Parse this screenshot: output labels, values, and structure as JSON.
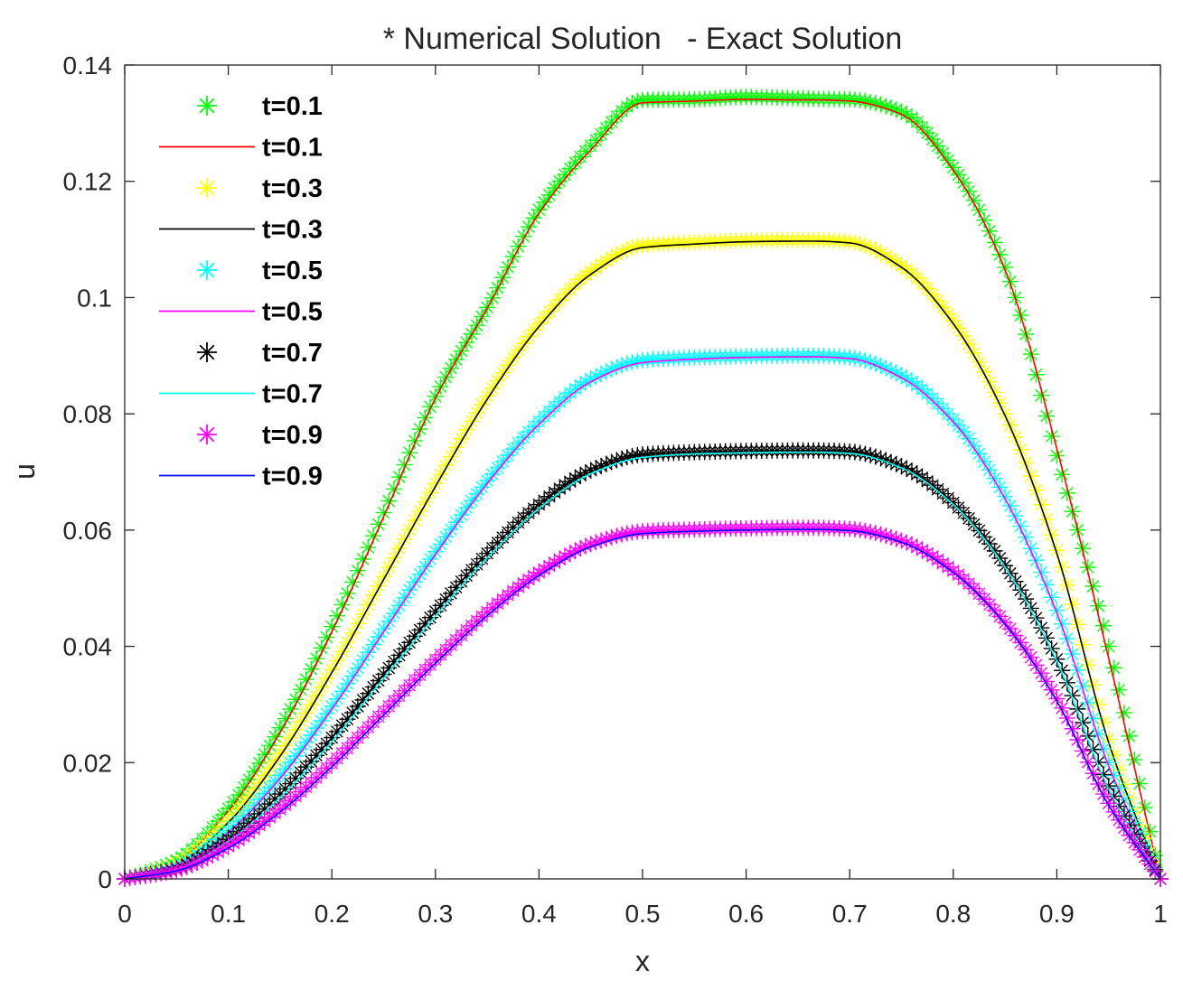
{
  "chart_data": {
    "type": "line",
    "title": "* Numerical Solution   - Exact Solution",
    "xlabel": "x",
    "ylabel": "u",
    "xlim": [
      0,
      1
    ],
    "ylim": [
      0,
      0.14
    ],
    "grid": false,
    "legend_placement": "top-left",
    "x_ticks": [
      "0",
      "0.1",
      "0.2",
      "0.3",
      "0.4",
      "0.5",
      "0.6",
      "0.7",
      "0.8",
      "0.9",
      "1"
    ],
    "y_ticks": [
      "0",
      "0.02",
      "0.04",
      "0.06",
      "0.08",
      "0.1",
      "0.12",
      "0.14"
    ],
    "x": [
      0,
      0.05,
      0.1,
      0.15,
      0.2,
      0.25,
      0.3,
      0.35,
      0.4,
      0.45,
      0.5,
      0.55,
      0.6,
      0.65,
      0.6667,
      0.7,
      0.75,
      0.8,
      0.85,
      0.9,
      0.95,
      1
    ],
    "series": [
      {
        "name": "t=0.1",
        "style": "marker",
        "color": "#00ff00",
        "values": [
          0,
          0.0032,
          0.0121,
          0.026,
          0.0434,
          0.063,
          0.083,
          0.0983,
          0.1151,
          0.1261,
          0.134,
          0.1341,
          0.1345,
          0.1343,
          0.1342,
          0.1341,
          0.132,
          0.1224,
          0.1052,
          0.0728,
          0.04,
          0
        ]
      },
      {
        "name": "t=0.1",
        "style": "line",
        "color": "#ff0000",
        "values": [
          0,
          0.003,
          0.0117,
          0.0252,
          0.0425,
          0.0623,
          0.0827,
          0.0982,
          0.1145,
          0.1254,
          0.1335,
          0.1338,
          0.1341,
          0.134,
          0.134,
          0.1338,
          0.1315,
          0.1219,
          0.1048,
          0.074,
          0.038,
          0
        ]
      },
      {
        "name": "t=0.3",
        "style": "marker",
        "color": "#ffff00",
        "values": [
          0,
          0.0027,
          0.01,
          0.0216,
          0.036,
          0.052,
          0.068,
          0.083,
          0.0955,
          0.1045,
          0.109,
          0.1095,
          0.1098,
          0.1099,
          0.1099,
          0.1096,
          0.1055,
          0.096,
          0.08,
          0.0565,
          0.024,
          0
        ]
      },
      {
        "name": "t=0.3",
        "style": "line",
        "color": "#000000",
        "values": [
          0,
          0.0025,
          0.0097,
          0.0211,
          0.0355,
          0.0515,
          0.0675,
          0.0825,
          0.095,
          0.104,
          0.1086,
          0.1092,
          0.1096,
          0.1097,
          0.1097,
          0.1094,
          0.1052,
          0.0955,
          0.0797,
          0.056,
          0.0235,
          0
        ]
      },
      {
        "name": "t=0.5",
        "style": "marker",
        "color": "#00ffff",
        "values": [
          0,
          0.0022,
          0.0083,
          0.0178,
          0.0297,
          0.043,
          0.0563,
          0.0685,
          0.0787,
          0.086,
          0.0892,
          0.0897,
          0.0899,
          0.09,
          0.09,
          0.0897,
          0.0866,
          0.079,
          0.0658,
          0.0462,
          0.02,
          0
        ]
      },
      {
        "name": "t=0.5",
        "style": "line",
        "color": "#ff00ff",
        "values": [
          0,
          0.002,
          0.008,
          0.0173,
          0.0292,
          0.0425,
          0.0558,
          0.068,
          0.0782,
          0.0855,
          0.0888,
          0.0894,
          0.0897,
          0.0898,
          0.0898,
          0.0895,
          0.0862,
          0.0786,
          0.0654,
          0.0458,
          0.0195,
          0
        ]
      },
      {
        "name": "t=0.7",
        "style": "marker",
        "color": "#000000",
        "values": [
          0,
          0.0018,
          0.0068,
          0.0146,
          0.0243,
          0.0352,
          0.046,
          0.056,
          0.0644,
          0.0703,
          0.073,
          0.0734,
          0.0736,
          0.0737,
          0.0737,
          0.0735,
          0.071,
          0.0647,
          0.0539,
          0.0378,
          0.016,
          0
        ]
      },
      {
        "name": "t=0.7",
        "style": "line",
        "color": "#00ffff",
        "values": [
          0,
          0.0017,
          0.0065,
          0.014,
          0.0236,
          0.0345,
          0.0452,
          0.0552,
          0.0637,
          0.0697,
          0.0725,
          0.0731,
          0.0733,
          0.0734,
          0.0734,
          0.0732,
          0.0707,
          0.0644,
          0.0536,
          0.0375,
          0.0155,
          0
        ]
      },
      {
        "name": "t=0.9",
        "style": "marker",
        "color": "#ff00ff",
        "values": [
          0,
          0.0015,
          0.0056,
          0.012,
          0.0199,
          0.0288,
          0.0377,
          0.0459,
          0.0527,
          0.0576,
          0.0598,
          0.0601,
          0.0603,
          0.0604,
          0.0604,
          0.0602,
          0.0582,
          0.053,
          0.0441,
          0.031,
          0.013,
          0
        ]
      },
      {
        "name": "t=0.9",
        "style": "line",
        "color": "#0000ff",
        "values": [
          0,
          0.0014,
          0.0053,
          0.0115,
          0.0193,
          0.0282,
          0.0371,
          0.0453,
          0.0522,
          0.0571,
          0.0594,
          0.0598,
          0.06,
          0.0601,
          0.0601,
          0.0599,
          0.0579,
          0.0527,
          0.0438,
          0.0306,
          0.0127,
          0
        ]
      }
    ]
  }
}
